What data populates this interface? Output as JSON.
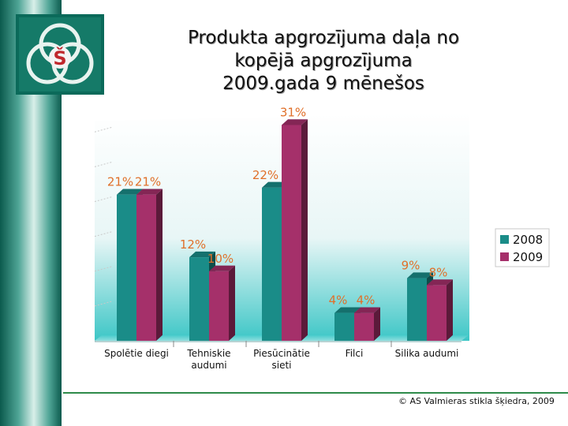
{
  "title_lines": [
    "Produkta apgrozījuma daļa no",
    "kopējā apgrozījuma",
    "2009.gada 9 mēnešos"
  ],
  "logo_letter": "Š",
  "footer": "© AS Valmieras stikla šķiedra, 2009",
  "colors": {
    "series_2008": "#1a8c88",
    "series_2009": "#a5306a",
    "label": "#e0702a"
  },
  "chart_data": {
    "type": "bar",
    "title": "Produkta apgrozījuma daļa no kopējā apgrozījuma 2009.gada 9 mēnešos",
    "categories": [
      [
        "Spolētie diegi"
      ],
      [
        "Tehniskie",
        "audumi"
      ],
      [
        "Piesūcinātie",
        "sieti"
      ],
      [
        "Filci"
      ],
      [
        "Silika audumi"
      ]
    ],
    "series": [
      {
        "name": "2008",
        "values": [
          21,
          12,
          22,
          4,
          9
        ],
        "labels": [
          "21%",
          "12%",
          "22%",
          "4%",
          "9%"
        ]
      },
      {
        "name": "2009",
        "values": [
          21,
          10,
          31,
          4,
          8
        ],
        "labels": [
          "21%",
          "10%",
          "31%",
          "4%",
          "8%"
        ]
      }
    ],
    "ylim": [
      0,
      34
    ],
    "legend": "right"
  }
}
